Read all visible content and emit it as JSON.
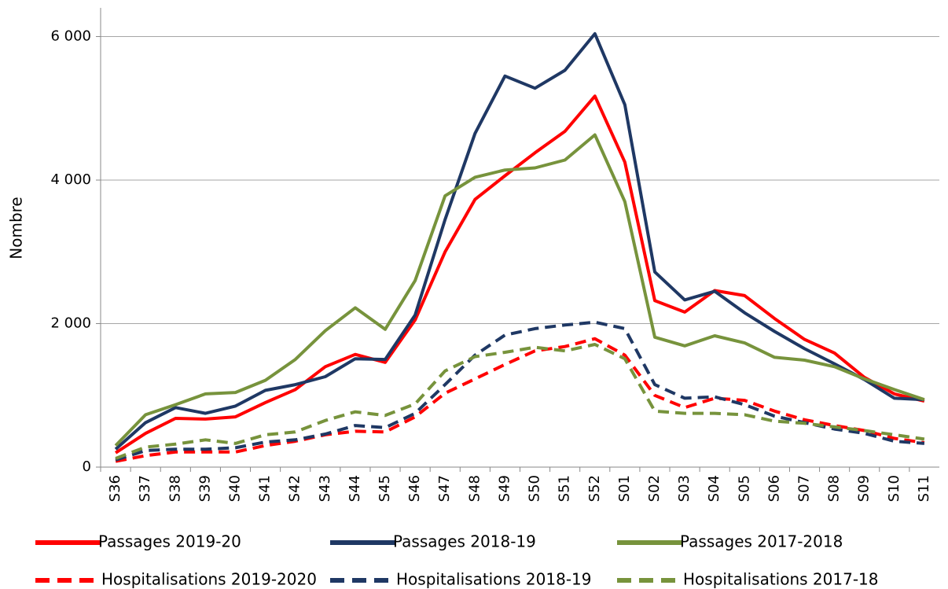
{
  "chart_data": {
    "type": "line",
    "y_label": "Nombre",
    "categories": [
      "S36",
      "S37",
      "S38",
      "S39",
      "S40",
      "S41",
      "S42",
      "S43",
      "S44",
      "S45",
      "S46",
      "S47",
      "S48",
      "S49",
      "S50",
      "S51",
      "S52",
      "S01",
      "S02",
      "S03",
      "S04",
      "S05",
      "S06",
      "S07",
      "S08",
      "S09",
      "S10",
      "S11"
    ],
    "series": [
      {
        "name": "Passages 2019-20",
        "color": "#ff0000",
        "dashed": false,
        "values": [
          200,
          470,
          680,
          670,
          700,
          900,
          1080,
          1400,
          1570,
          1460,
          2050,
          3000,
          3730,
          4060,
          4380,
          4680,
          5170,
          4250,
          2320,
          2160,
          2460,
          2390,
          2070,
          1780,
          1590,
          1250,
          1020,
          920
        ]
      },
      {
        "name": "Passages 2018-19",
        "color": "#1f3864",
        "dashed": false,
        "values": [
          250,
          620,
          830,
          750,
          850,
          1070,
          1150,
          1260,
          1510,
          1500,
          2120,
          3450,
          4650,
          5450,
          5280,
          5530,
          6040,
          5050,
          2720,
          2330,
          2450,
          2150,
          1890,
          1650,
          1440,
          1220,
          960,
          940
        ]
      },
      {
        "name": "Passages 2017-2018",
        "color": "#77933c",
        "dashed": false,
        "values": [
          300,
          730,
          870,
          1020,
          1040,
          1210,
          1500,
          1900,
          2220,
          1920,
          2600,
          3780,
          4040,
          4140,
          4170,
          4280,
          4630,
          3700,
          1810,
          1690,
          1830,
          1730,
          1530,
          1490,
          1400,
          1230,
          1080,
          940
        ]
      },
      {
        "name": "Hospitalisations 2019-2020",
        "color": "#ff0000",
        "dashed": true,
        "values": [
          80,
          160,
          210,
          210,
          210,
          300,
          360,
          450,
          500,
          490,
          700,
          1030,
          1230,
          1430,
          1620,
          1680,
          1790,
          1560,
          1000,
          830,
          960,
          930,
          780,
          660,
          580,
          510,
          400,
          340
        ]
      },
      {
        "name": "Hospitalisations 2018-19",
        "color": "#1f3864",
        "dashed": true,
        "values": [
          100,
          230,
          250,
          250,
          270,
          350,
          380,
          460,
          580,
          550,
          750,
          1150,
          1560,
          1840,
          1930,
          1980,
          2020,
          1930,
          1150,
          960,
          980,
          870,
          710,
          620,
          530,
          470,
          360,
          330
        ]
      },
      {
        "name": "Hospitalisations 2017-18",
        "color": "#77933c",
        "dashed": true,
        "values": [
          120,
          280,
          320,
          380,
          330,
          450,
          490,
          650,
          770,
          720,
          880,
          1340,
          1540,
          1600,
          1670,
          1620,
          1710,
          1510,
          780,
          750,
          750,
          730,
          640,
          610,
          560,
          510,
          450,
          390
        ]
      }
    ],
    "ylim": [
      0,
      6400
    ],
    "yticks": [
      0,
      {
        "value": 2000,
        "label": "2 000"
      },
      {
        "value": 4000,
        "label": "4 000"
      },
      {
        "value": 6000,
        "label": "6 000"
      }
    ],
    "grid": true
  }
}
